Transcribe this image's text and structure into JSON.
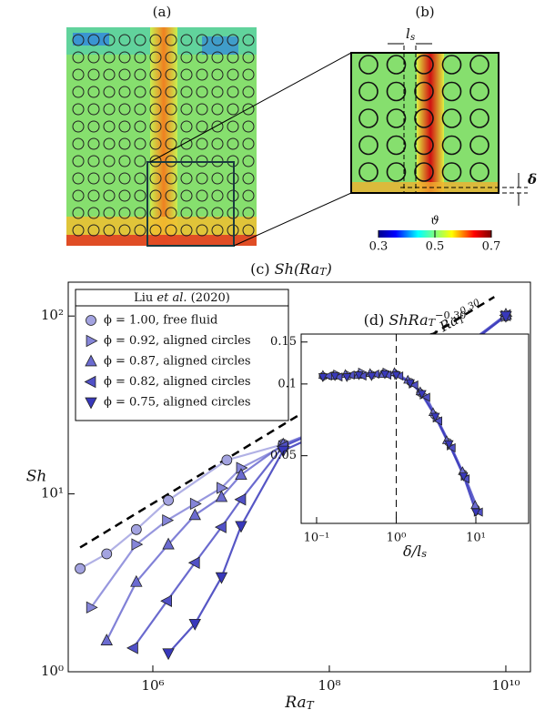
{
  "figure": {
    "panel_a_label": "(a)",
    "panel_b_label": "(b)",
    "ls_label": [
      "l",
      "s"
    ],
    "delta_label": "δ"
  },
  "colorbar": {
    "label": "ϑ",
    "lim": [
      0.3,
      0.7
    ],
    "ticks": [
      0.3,
      0.5,
      0.7
    ]
  },
  "chart_data": [
    {
      "type": "line",
      "title": [
        "(c) ",
        "Sh(Ra",
        "T",
        ")"
      ],
      "xlabel": [
        "Ra",
        "T"
      ],
      "ylabel": "Sh",
      "xlog": true,
      "ylog": true,
      "xlim": [
        110000,
        19000000000
      ],
      "ylim": [
        1,
        155
      ],
      "xticks": [
        {
          "value": 1000000,
          "label": "10⁶"
        },
        {
          "value": 100000000,
          "label": "10⁸"
        },
        {
          "value": 10000000000,
          "label": "10¹⁰"
        }
      ],
      "yticks": [
        {
          "value": 1,
          "label": "10⁰"
        },
        {
          "value": 10,
          "label": "10¹"
        },
        {
          "value": 100,
          "label": "10²"
        }
      ],
      "legend": "upper left",
      "legend_title": [
        "Liu ",
        "et al.",
        " (2020)"
      ],
      "reference": {
        "label": [
          "∼ Ra",
          "T",
          "0.30"
        ],
        "x": [
          150000,
          7400000000
        ],
        "values": [
          5,
          128
        ],
        "color": "#000000"
      },
      "series": [
        {
          "name": "ϕ = 1.00, free fluid",
          "color": "#a3a3e0",
          "marker": "o",
          "x": [
            150000,
            300000,
            650000,
            1500000,
            6900000,
            30000000,
            100000000,
            300000000,
            1000000000,
            3000000000,
            10000000000
          ],
          "values": [
            3.8,
            4.6,
            6.3,
            9.2,
            15.5,
            19,
            23,
            36,
            46,
            64,
            100
          ]
        },
        {
          "name": "ϕ = 0.92, aligned circles",
          "color": "#8585d8",
          "marker": ">",
          "x": [
            200000,
            650000,
            1450000,
            3000000,
            6000000,
            10000000,
            30000000,
            100000000,
            300000000,
            1000000000,
            3000000000,
            10000000000
          ],
          "values": [
            2.3,
            5.2,
            7.1,
            8.8,
            10.8,
            14,
            18.5,
            24,
            37,
            47,
            65,
            100
          ]
        },
        {
          "name": "ϕ = 0.87, aligned circles",
          "color": "#6b6bd0",
          "marker": "^",
          "x": [
            300000,
            650000,
            1500000,
            3000000,
            6000000,
            10000000,
            30000000,
            100000000,
            300000000,
            1000000000,
            3000000000,
            10000000000
          ],
          "values": [
            1.5,
            3.2,
            5.2,
            7.6,
            9.6,
            12.8,
            19,
            24,
            36,
            46,
            64,
            102
          ]
        },
        {
          "name": "ϕ = 0.82, aligned circles",
          "color": "#5050c6",
          "marker": "<",
          "x": [
            600000,
            1450000,
            3000000,
            6000000,
            10000000,
            30000000,
            100000000,
            300000000,
            1000000000,
            3000000000,
            10000000000
          ],
          "values": [
            1.36,
            2.5,
            4.1,
            6.5,
            9.3,
            18.5,
            24,
            37,
            46,
            65,
            101
          ]
        },
        {
          "name": "ϕ = 0.75, aligned circles",
          "color": "#3838bb",
          "marker": "v",
          "x": [
            1500000,
            3000000,
            6000000,
            10000000,
            30000000,
            100000000,
            300000000,
            1000000000,
            3000000000,
            10000000000
          ],
          "values": [
            1.27,
            1.86,
            3.4,
            6.6,
            17.5,
            23,
            35,
            45,
            63,
            100
          ]
        }
      ]
    },
    {
      "type": "line",
      "title": [
        "(d) ",
        "ShRa",
        "T",
        "−0.30"
      ],
      "xlabel": [
        "δ/l",
        "s"
      ],
      "xlog": true,
      "ylog": true,
      "xlim": [
        0.064,
        46
      ],
      "ylim": [
        0.026,
        0.162
      ],
      "xticks": [
        {
          "value": 0.1,
          "label": "10⁻¹"
        },
        {
          "value": 1,
          "label": "10⁰"
        },
        {
          "value": 10,
          "label": "10¹"
        }
      ],
      "yticks": [
        0.15,
        0.1,
        0.05
      ],
      "vline": 1,
      "series": [
        {
          "color": "#a3a3e0",
          "marker": "o",
          "x": [
            0.12,
            0.17,
            0.25,
            0.35,
            0.5,
            0.7,
            1,
            1.5,
            2,
            3,
            4.5,
            7,
            10
          ],
          "values": [
            0.108,
            0.109,
            0.108,
            0.11,
            0.109,
            0.111,
            0.11,
            0.102,
            0.092,
            0.074,
            0.057,
            0.042,
            0.03
          ]
        },
        {
          "color": "#8585d8",
          "marker": ">",
          "x": [
            0.13,
            0.18,
            0.26,
            0.37,
            0.52,
            0.75,
            1.05,
            1.6,
            2.2,
            3.2,
            4.8,
            7.2,
            10.5
          ],
          "values": [
            0.107,
            0.11,
            0.109,
            0.112,
            0.11,
            0.112,
            0.109,
            0.1,
            0.09,
            0.072,
            0.055,
            0.041,
            0.029
          ]
        },
        {
          "color": "#6b6bd0",
          "marker": "^",
          "x": [
            0.12,
            0.16,
            0.23,
            0.33,
            0.47,
            0.68,
            0.95,
            1.4,
            2,
            2.9,
            4.3,
            6.8,
            9.8
          ],
          "values": [
            0.109,
            0.108,
            0.11,
            0.109,
            0.111,
            0.11,
            0.112,
            0.104,
            0.093,
            0.076,
            0.058,
            0.043,
            0.031
          ]
        },
        {
          "color": "#5050c6",
          "marker": "<",
          "x": [
            0.14,
            0.19,
            0.27,
            0.38,
            0.55,
            0.78,
            1.1,
            1.7,
            2.4,
            3.4,
            5,
            7.5,
            11
          ],
          "values": [
            0.108,
            0.107,
            0.109,
            0.108,
            0.11,
            0.109,
            0.108,
            0.099,
            0.088,
            0.07,
            0.054,
            0.04,
            0.029
          ]
        },
        {
          "color": "#3838bb",
          "marker": "v",
          "x": [
            0.12,
            0.17,
            0.24,
            0.34,
            0.49,
            0.72,
            1,
            1.5,
            2.1,
            3.1,
            4.6,
            7,
            10
          ],
          "values": [
            0.107,
            0.108,
            0.107,
            0.109,
            0.108,
            0.11,
            0.109,
            0.101,
            0.091,
            0.073,
            0.056,
            0.041,
            0.029
          ]
        }
      ]
    }
  ]
}
